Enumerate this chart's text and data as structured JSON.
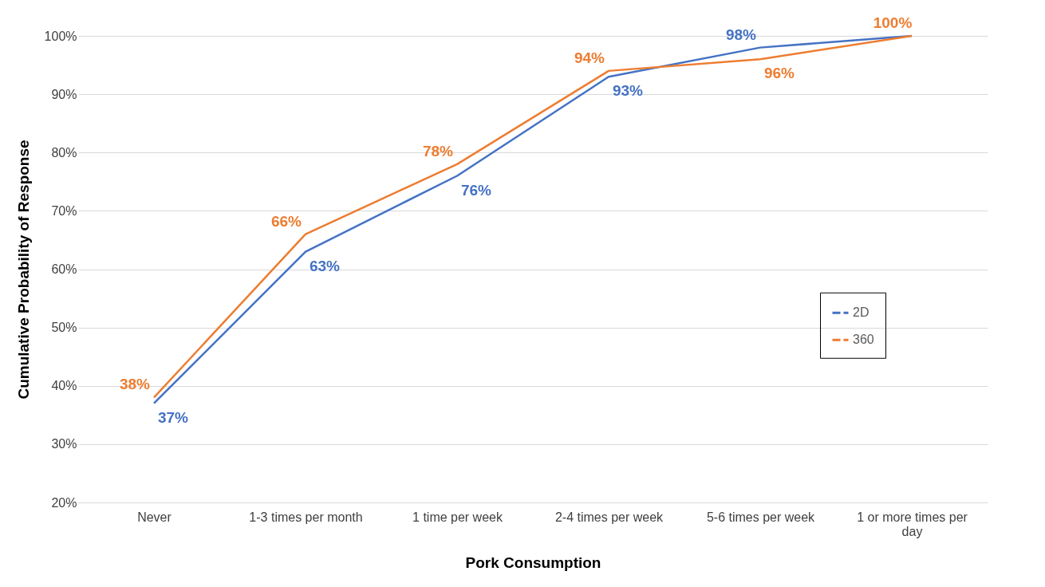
{
  "chart_data": {
    "type": "line",
    "xlabel": "Pork Consumption",
    "ylabel": "Cumulative Probability of Response",
    "categories": [
      "Never",
      "1-3 times per month",
      "1 time per week",
      "2-4 times per week",
      "5-6 times per week",
      "1 or more times per day"
    ],
    "series": [
      {
        "name": "2D",
        "color": "#4472c4",
        "values": [
          37,
          63,
          76,
          93,
          98,
          100
        ],
        "value_labels": [
          "37%",
          "63%",
          "76%",
          "93%",
          "98%",
          null
        ]
      },
      {
        "name": "360",
        "color": "#ed7d31",
        "values": [
          38,
          66,
          78,
          94,
          96,
          100
        ],
        "value_labels": [
          "38%",
          "66%",
          "78%",
          "94%",
          "96%",
          "100%"
        ]
      }
    ],
    "ylim": [
      20,
      100
    ],
    "yticks": [
      {
        "value": 20,
        "label": "20%"
      },
      {
        "value": 30,
        "label": "30%"
      },
      {
        "value": 40,
        "label": "40%"
      },
      {
        "value": 50,
        "label": "50%"
      },
      {
        "value": 60,
        "label": "60%"
      },
      {
        "value": 70,
        "label": "70%"
      },
      {
        "value": 80,
        "label": "80%"
      },
      {
        "value": 90,
        "label": "90%"
      },
      {
        "value": 100,
        "label": "100%"
      }
    ],
    "grid": "y",
    "legend": "right"
  }
}
